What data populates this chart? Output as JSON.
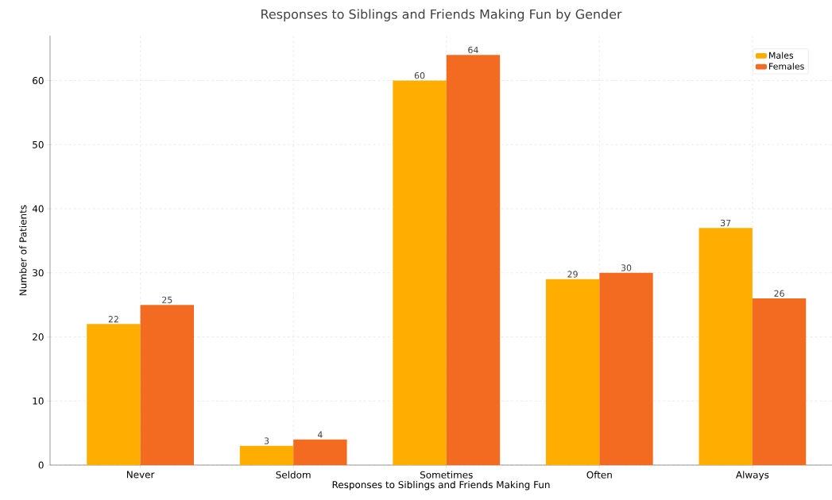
{
  "chart_data": {
    "type": "bar",
    "title": "Responses to Siblings and Friends Making Fun by Gender",
    "xlabel": "Responses to Siblings and Friends Making Fun",
    "ylabel": "Number of Patients",
    "categories": [
      "Never",
      "Seldom",
      "Sometimes",
      "Often",
      "Always"
    ],
    "series": [
      {
        "name": "Males",
        "color": "#ffae00",
        "values": [
          22,
          3,
          60,
          29,
          37
        ]
      },
      {
        "name": "Females",
        "color": "#f26b21",
        "values": [
          25,
          4,
          64,
          30,
          26
        ]
      }
    ],
    "ylim": [
      0,
      67
    ],
    "yticks": [
      0,
      10,
      20,
      30,
      40,
      50,
      60
    ],
    "grid": true,
    "legend": "top right",
    "data_labels": true
  }
}
